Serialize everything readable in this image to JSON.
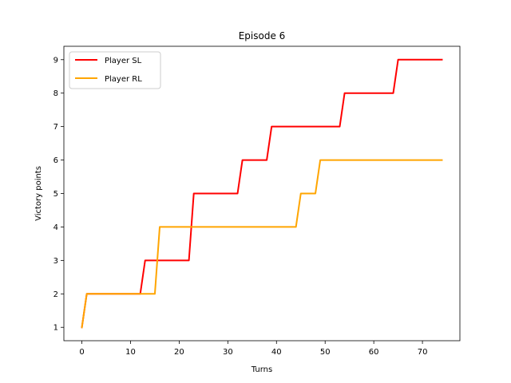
{
  "chart_data": {
    "type": "line",
    "title": "Episode 6",
    "xlabel": "Turns",
    "ylabel": "Victory points",
    "xlim": [
      -3.7,
      77.7
    ],
    "ylim": [
      0.6,
      9.4
    ],
    "xticks": [
      0,
      10,
      20,
      30,
      40,
      50,
      60,
      70
    ],
    "yticks": [
      1,
      2,
      3,
      4,
      5,
      6,
      7,
      8,
      9
    ],
    "grid": false,
    "legend_position": "top-left",
    "series": [
      {
        "name": "Player SL",
        "color": "#ff0000",
        "points": [
          [
            0,
            1
          ],
          [
            1,
            2
          ],
          [
            12,
            2
          ],
          [
            13,
            3
          ],
          [
            22,
            3
          ],
          [
            23,
            5
          ],
          [
            32,
            5
          ],
          [
            33,
            6
          ],
          [
            38,
            6
          ],
          [
            39,
            7
          ],
          [
            53,
            7
          ],
          [
            54,
            8
          ],
          [
            64,
            8
          ],
          [
            65,
            9
          ],
          [
            74,
            9
          ]
        ]
      },
      {
        "name": "Player RL",
        "color": "#ffa500",
        "points": [
          [
            0,
            1
          ],
          [
            1,
            2
          ],
          [
            15,
            2
          ],
          [
            16,
            4
          ],
          [
            44,
            4
          ],
          [
            45,
            5
          ],
          [
            48,
            5
          ],
          [
            49,
            6
          ],
          [
            74,
            6
          ]
        ]
      }
    ]
  }
}
